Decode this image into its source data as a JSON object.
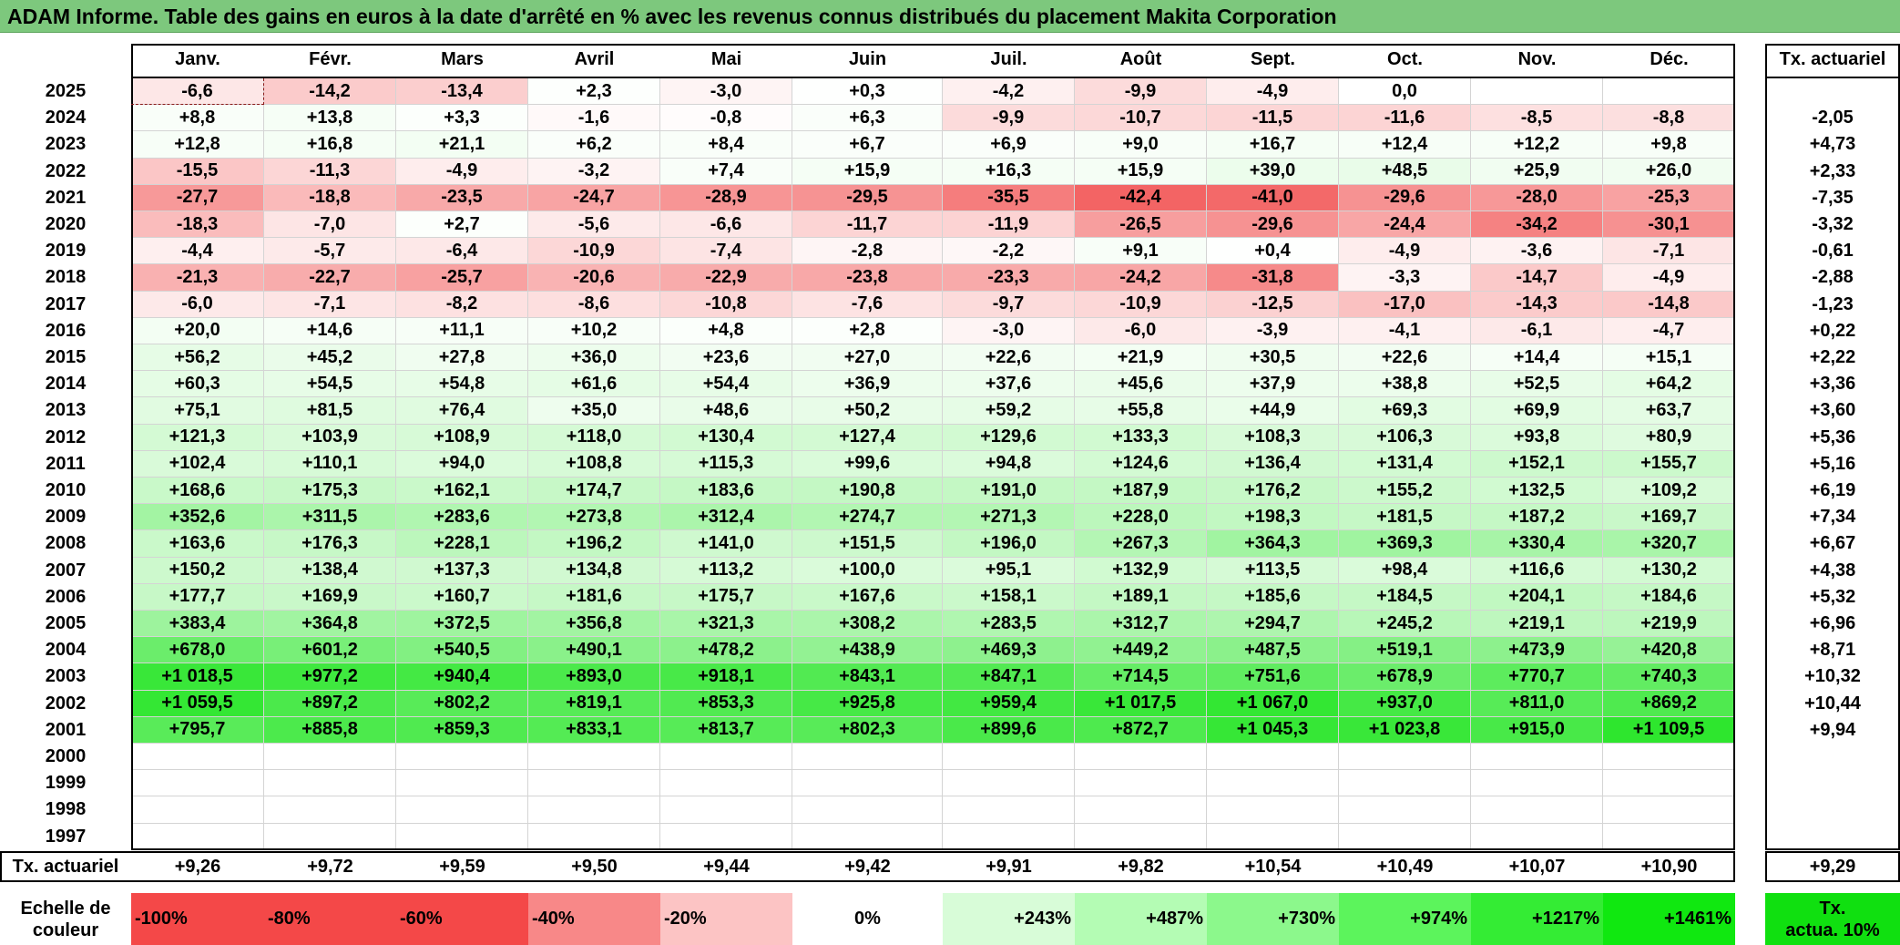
{
  "title": "ADAM Informe. Table des gains en euros à la date d'arrêté en % avec les revenus connus distribués du placement Makita Corporation",
  "months": [
    "Janv.",
    "Févr.",
    "Mars",
    "Avril",
    "Mai",
    "Juin",
    "Juil.",
    "Août",
    "Sept.",
    "Oct.",
    "Nov.",
    "Déc."
  ],
  "annual_header": "Tx. actuariel",
  "rows": [
    {
      "year": "2025",
      "values": [
        "-6,6",
        "-14,2",
        "-13,4",
        "+2,3",
        "-3,0",
        "+0,3",
        "-4,2",
        "-9,9",
        "-4,9",
        "0,0",
        "",
        ""
      ],
      "rate": ""
    },
    {
      "year": "2024",
      "values": [
        "+8,8",
        "+13,8",
        "+3,3",
        "-1,6",
        "-0,8",
        "+6,3",
        "-9,9",
        "-10,7",
        "-11,5",
        "-11,6",
        "-8,5",
        "-8,8"
      ],
      "rate": "-2,05"
    },
    {
      "year": "2023",
      "values": [
        "+12,8",
        "+16,8",
        "+21,1",
        "+6,2",
        "+8,4",
        "+6,7",
        "+6,9",
        "+9,0",
        "+16,7",
        "+12,4",
        "+12,2",
        "+9,8"
      ],
      "rate": "+4,73"
    },
    {
      "year": "2022",
      "values": [
        "-15,5",
        "-11,3",
        "-4,9",
        "-3,2",
        "+7,4",
        "+15,9",
        "+16,3",
        "+15,9",
        "+39,0",
        "+48,5",
        "+25,9",
        "+26,0"
      ],
      "rate": "+2,33"
    },
    {
      "year": "2021",
      "values": [
        "-27,7",
        "-18,8",
        "-23,5",
        "-24,7",
        "-28,9",
        "-29,5",
        "-35,5",
        "-42,4",
        "-41,0",
        "-29,6",
        "-28,0",
        "-25,3"
      ],
      "rate": "-7,35"
    },
    {
      "year": "2020",
      "values": [
        "-18,3",
        "-7,0",
        "+2,7",
        "-5,6",
        "-6,6",
        "-11,7",
        "-11,9",
        "-26,5",
        "-29,6",
        "-24,4",
        "-34,2",
        "-30,1"
      ],
      "rate": "-3,32"
    },
    {
      "year": "2019",
      "values": [
        "-4,4",
        "-5,7",
        "-6,4",
        "-10,9",
        "-7,4",
        "-2,8",
        "-2,2",
        "+9,1",
        "+0,4",
        "-4,9",
        "-3,6",
        "-7,1"
      ],
      "rate": "-0,61"
    },
    {
      "year": "2018",
      "values": [
        "-21,3",
        "-22,7",
        "-25,7",
        "-20,6",
        "-22,9",
        "-23,8",
        "-23,3",
        "-24,2",
        "-31,8",
        "-3,3",
        "-14,7",
        "-4,9"
      ],
      "rate": "-2,88"
    },
    {
      "year": "2017",
      "values": [
        "-6,0",
        "-7,1",
        "-8,2",
        "-8,6",
        "-10,8",
        "-7,6",
        "-9,7",
        "-10,9",
        "-12,5",
        "-17,0",
        "-14,3",
        "-14,8"
      ],
      "rate": "-1,23"
    },
    {
      "year": "2016",
      "values": [
        "+20,0",
        "+14,6",
        "+11,1",
        "+10,2",
        "+4,8",
        "+2,8",
        "-3,0",
        "-6,0",
        "-3,9",
        "-4,1",
        "-6,1",
        "-4,7"
      ],
      "rate": "+0,22"
    },
    {
      "year": "2015",
      "values": [
        "+56,2",
        "+45,2",
        "+27,8",
        "+36,0",
        "+23,6",
        "+27,0",
        "+22,6",
        "+21,9",
        "+30,5",
        "+22,6",
        "+14,4",
        "+15,1"
      ],
      "rate": "+2,22"
    },
    {
      "year": "2014",
      "values": [
        "+60,3",
        "+54,5",
        "+54,8",
        "+61,6",
        "+54,4",
        "+36,9",
        "+37,6",
        "+45,6",
        "+37,9",
        "+38,8",
        "+52,5",
        "+64,2"
      ],
      "rate": "+3,36"
    },
    {
      "year": "2013",
      "values": [
        "+75,1",
        "+81,5",
        "+76,4",
        "+35,0",
        "+48,6",
        "+50,2",
        "+59,2",
        "+55,8",
        "+44,9",
        "+69,3",
        "+69,9",
        "+63,7"
      ],
      "rate": "+3,60"
    },
    {
      "year": "2012",
      "values": [
        "+121,3",
        "+103,9",
        "+108,9",
        "+118,0",
        "+130,4",
        "+127,4",
        "+129,6",
        "+133,3",
        "+108,3",
        "+106,3",
        "+93,8",
        "+80,9"
      ],
      "rate": "+5,36"
    },
    {
      "year": "2011",
      "values": [
        "+102,4",
        "+110,1",
        "+94,0",
        "+108,8",
        "+115,3",
        "+99,6",
        "+94,8",
        "+124,6",
        "+136,4",
        "+131,4",
        "+152,1",
        "+155,7"
      ],
      "rate": "+5,16"
    },
    {
      "year": "2010",
      "values": [
        "+168,6",
        "+175,3",
        "+162,1",
        "+174,7",
        "+183,6",
        "+190,8",
        "+191,0",
        "+187,9",
        "+176,2",
        "+155,2",
        "+132,5",
        "+109,2"
      ],
      "rate": "+6,19"
    },
    {
      "year": "2009",
      "values": [
        "+352,6",
        "+311,5",
        "+283,6",
        "+273,8",
        "+312,4",
        "+274,7",
        "+271,3",
        "+228,0",
        "+198,3",
        "+181,5",
        "+187,2",
        "+169,7"
      ],
      "rate": "+7,34"
    },
    {
      "year": "2008",
      "values": [
        "+163,6",
        "+176,3",
        "+228,1",
        "+196,2",
        "+141,0",
        "+151,5",
        "+196,0",
        "+267,3",
        "+364,3",
        "+369,3",
        "+330,4",
        "+320,7"
      ],
      "rate": "+6,67"
    },
    {
      "year": "2007",
      "values": [
        "+150,2",
        "+138,4",
        "+137,3",
        "+134,8",
        "+113,2",
        "+100,0",
        "+95,1",
        "+132,9",
        "+113,5",
        "+98,4",
        "+116,6",
        "+130,2"
      ],
      "rate": "+4,38"
    },
    {
      "year": "2006",
      "values": [
        "+177,7",
        "+169,9",
        "+160,7",
        "+181,6",
        "+175,7",
        "+167,6",
        "+158,1",
        "+189,1",
        "+185,6",
        "+184,5",
        "+204,1",
        "+184,6"
      ],
      "rate": "+5,32"
    },
    {
      "year": "2005",
      "values": [
        "+383,4",
        "+364,8",
        "+372,5",
        "+356,8",
        "+321,3",
        "+308,2",
        "+283,5",
        "+312,7",
        "+294,7",
        "+245,2",
        "+219,1",
        "+219,9"
      ],
      "rate": "+6,96"
    },
    {
      "year": "2004",
      "values": [
        "+678,0",
        "+601,2",
        "+540,5",
        "+490,1",
        "+478,2",
        "+438,9",
        "+469,3",
        "+449,2",
        "+487,5",
        "+519,1",
        "+473,9",
        "+420,8"
      ],
      "rate": "+8,71"
    },
    {
      "year": "2003",
      "values": [
        "+1 018,5",
        "+977,2",
        "+940,4",
        "+893,0",
        "+918,1",
        "+843,1",
        "+847,1",
        "+714,5",
        "+751,6",
        "+678,9",
        "+770,7",
        "+740,3"
      ],
      "rate": "+10,32"
    },
    {
      "year": "2002",
      "values": [
        "+1 059,5",
        "+897,2",
        "+802,2",
        "+819,1",
        "+853,3",
        "+925,8",
        "+959,4",
        "+1 017,5",
        "+1 067,0",
        "+937,0",
        "+811,0",
        "+869,2"
      ],
      "rate": "+10,44"
    },
    {
      "year": "2001",
      "values": [
        "+795,7",
        "+885,8",
        "+859,3",
        "+833,1",
        "+813,7",
        "+802,3",
        "+899,6",
        "+872,7",
        "+1 045,3",
        "+1 023,8",
        "+915,0",
        "+1 109,5"
      ],
      "rate": "+9,94"
    },
    {
      "year": "2000",
      "values": [
        "",
        "",
        "",
        "",
        "",
        "",
        "",
        "",
        "",
        "",
        "",
        ""
      ],
      "rate": ""
    },
    {
      "year": "1999",
      "values": [
        "",
        "",
        "",
        "",
        "",
        "",
        "",
        "",
        "",
        "",
        "",
        ""
      ],
      "rate": ""
    },
    {
      "year": "1998",
      "values": [
        "",
        "",
        "",
        "",
        "",
        "",
        "",
        "",
        "",
        "",
        "",
        ""
      ],
      "rate": ""
    },
    {
      "year": "1997",
      "values": [
        "",
        "",
        "",
        "",
        "",
        "",
        "",
        "",
        "",
        "",
        "",
        ""
      ],
      "rate": ""
    }
  ],
  "footer": {
    "label": "Tx. actuariel",
    "values": [
      "+9,26",
      "+9,72",
      "+9,59",
      "+9,50",
      "+9,44",
      "+9,42",
      "+9,91",
      "+9,82",
      "+10,54",
      "+10,49",
      "+10,07",
      "+10,90"
    ],
    "rate": "+9,29"
  },
  "scale": {
    "label_line1": "Echelle de",
    "label_line2": "couleur",
    "items": [
      {
        "text": "-100%",
        "color": "#f44848"
      },
      {
        "text": "-80%",
        "color": "#f44848"
      },
      {
        "text": "-60%",
        "color": "#f44848"
      },
      {
        "text": "-40%",
        "color": "#f88888"
      },
      {
        "text": "-20%",
        "color": "#fcc4c4"
      },
      {
        "text": "0%",
        "color": "#ffffff"
      },
      {
        "text": "+243%",
        "color": "#d8fcd8"
      },
      {
        "text": "+487%",
        "color": "#b4fcb4"
      },
      {
        "text": "+730%",
        "color": "#8cf88c"
      },
      {
        "text": "+974%",
        "color": "#5cf45c"
      },
      {
        "text": "+1217%",
        "color": "#34ec34"
      },
      {
        "text": "+1461%",
        "color": "#10e810"
      }
    ],
    "rate_line1": "Tx.",
    "rate_line2": "actua. 10%",
    "rate_color": "#10e010"
  }
}
